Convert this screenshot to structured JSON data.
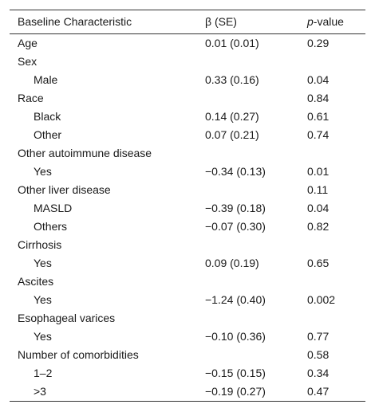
{
  "table": {
    "header": [
      "Baseline Characteristic",
      "β (SE)",
      "p-value"
    ],
    "rows": [
      {
        "label": "Age",
        "beta": "0.01 (0.01)",
        "p": "0.29"
      },
      {
        "label": "Sex"
      },
      {
        "label": "Male",
        "indent": true,
        "beta": "0.33 (0.16)",
        "p": "0.04"
      },
      {
        "label": "Race",
        "p": "0.84"
      },
      {
        "label": "Black",
        "indent": true,
        "beta": "0.14 (0.27)",
        "p": "0.61"
      },
      {
        "label": "Other",
        "indent": true,
        "beta": "0.07 (0.21)",
        "p": "0.74"
      },
      {
        "label": "Other autoimmune disease"
      },
      {
        "label": "Yes",
        "indent": true,
        "beta": "−0.34 (0.13)",
        "p": "0.01"
      },
      {
        "label": "Other liver disease",
        "p": "0.11"
      },
      {
        "label": "MASLD",
        "indent": true,
        "beta": "−0.39 (0.18)",
        "p": "0.04"
      },
      {
        "label": "Others",
        "indent": true,
        "beta": "−0.07 (0.30)",
        "p": "0.82"
      },
      {
        "label": "Cirrhosis"
      },
      {
        "label": "Yes",
        "indent": true,
        "beta": "0.09 (0.19)",
        "p": "0.65"
      },
      {
        "label": "Ascites"
      },
      {
        "label": "Yes",
        "indent": true,
        "beta": "−1.24 (0.40)",
        "p": "0.002"
      },
      {
        "label": "Esophageal varices"
      },
      {
        "label": "Yes",
        "indent": true,
        "beta": "−0.10 (0.36)",
        "p": "0.77"
      },
      {
        "label": "Number of comorbidities",
        "p": "0.58"
      },
      {
        "label": "1–2",
        "indent": true,
        "beta": "−0.15 (0.15)",
        "p": "0.34"
      },
      {
        "label": ">3",
        "indent": true,
        "beta": "−0.19 (0.27)",
        "p": "0.47"
      }
    ]
  }
}
